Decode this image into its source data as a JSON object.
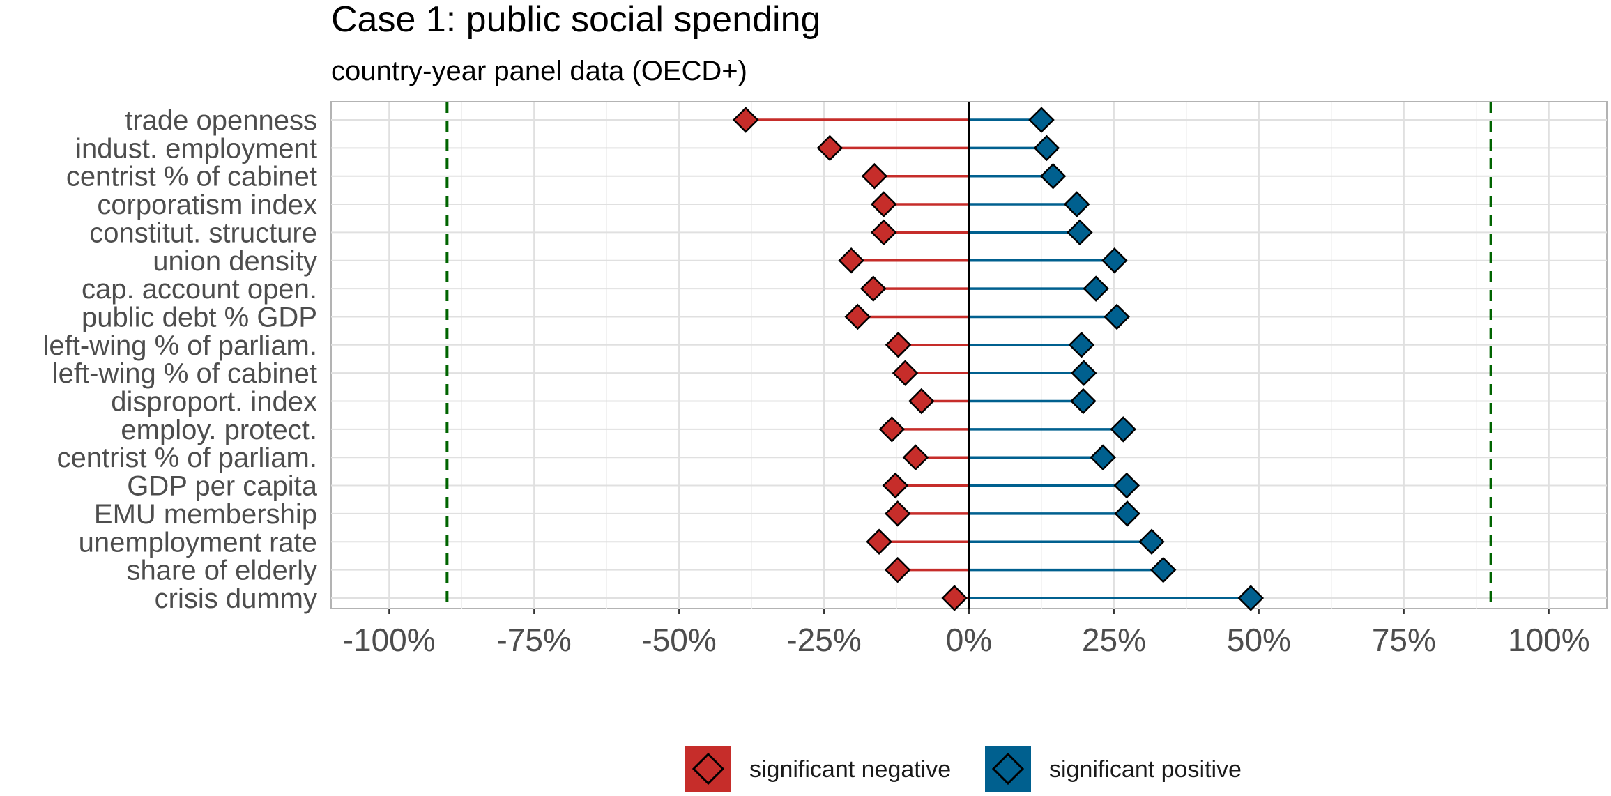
{
  "chart_data": {
    "type": "dumbbell",
    "title": "Case 1: public social spending",
    "subtitle": "country-year panel data (OECD+)",
    "xlabel": "",
    "ylabel": "",
    "xlim": [
      -110,
      110
    ],
    "x_ticks": [
      -100,
      -75,
      -50,
      -25,
      0,
      25,
      50,
      75,
      100
    ],
    "x_tick_labels": [
      "-100%",
      "-75%",
      "-50%",
      "-25%",
      "0%",
      "25%",
      "50%",
      "75%",
      "100%"
    ],
    "reference_lines": [
      -90,
      90
    ],
    "reference_line_color": "#006400",
    "zero_line": 0,
    "grid": true,
    "legend_position": "bottom",
    "legend": [
      {
        "label": "significant negative",
        "color": "#c62d2a"
      },
      {
        "label": "significant positive",
        "color": "#00608f"
      }
    ],
    "categories": [
      "trade openness",
      "indust. employment",
      "centrist % of cabinet",
      "corporatism index",
      "constitut. structure",
      "union density",
      "cap. account open.",
      "public debt % GDP",
      "left-wing % of parliam.",
      "left-wing % of cabinet",
      "disproport. index",
      "employ. protect.",
      "centrist % of parliam.",
      "GDP per capita",
      "EMU membership",
      "unemployment rate",
      "share of elderly",
      "crisis dummy"
    ],
    "series": [
      {
        "name": "significant negative",
        "values": [
          -38.5,
          -24,
          -16.3,
          -14.7,
          -14.7,
          -20.3,
          -16.5,
          -19.2,
          -12.2,
          -11,
          -8.2,
          -13.3,
          -9.2,
          -12.7,
          -12.3,
          -15.5,
          -12.3,
          -2.5
        ]
      },
      {
        "name": "significant positive",
        "values": [
          12.5,
          13.4,
          14.5,
          18.6,
          19.1,
          25.1,
          21.9,
          25.5,
          19.4,
          19.8,
          19.7,
          26.6,
          23.1,
          27.2,
          27.3,
          31.5,
          33.5,
          48.6
        ]
      }
    ]
  }
}
